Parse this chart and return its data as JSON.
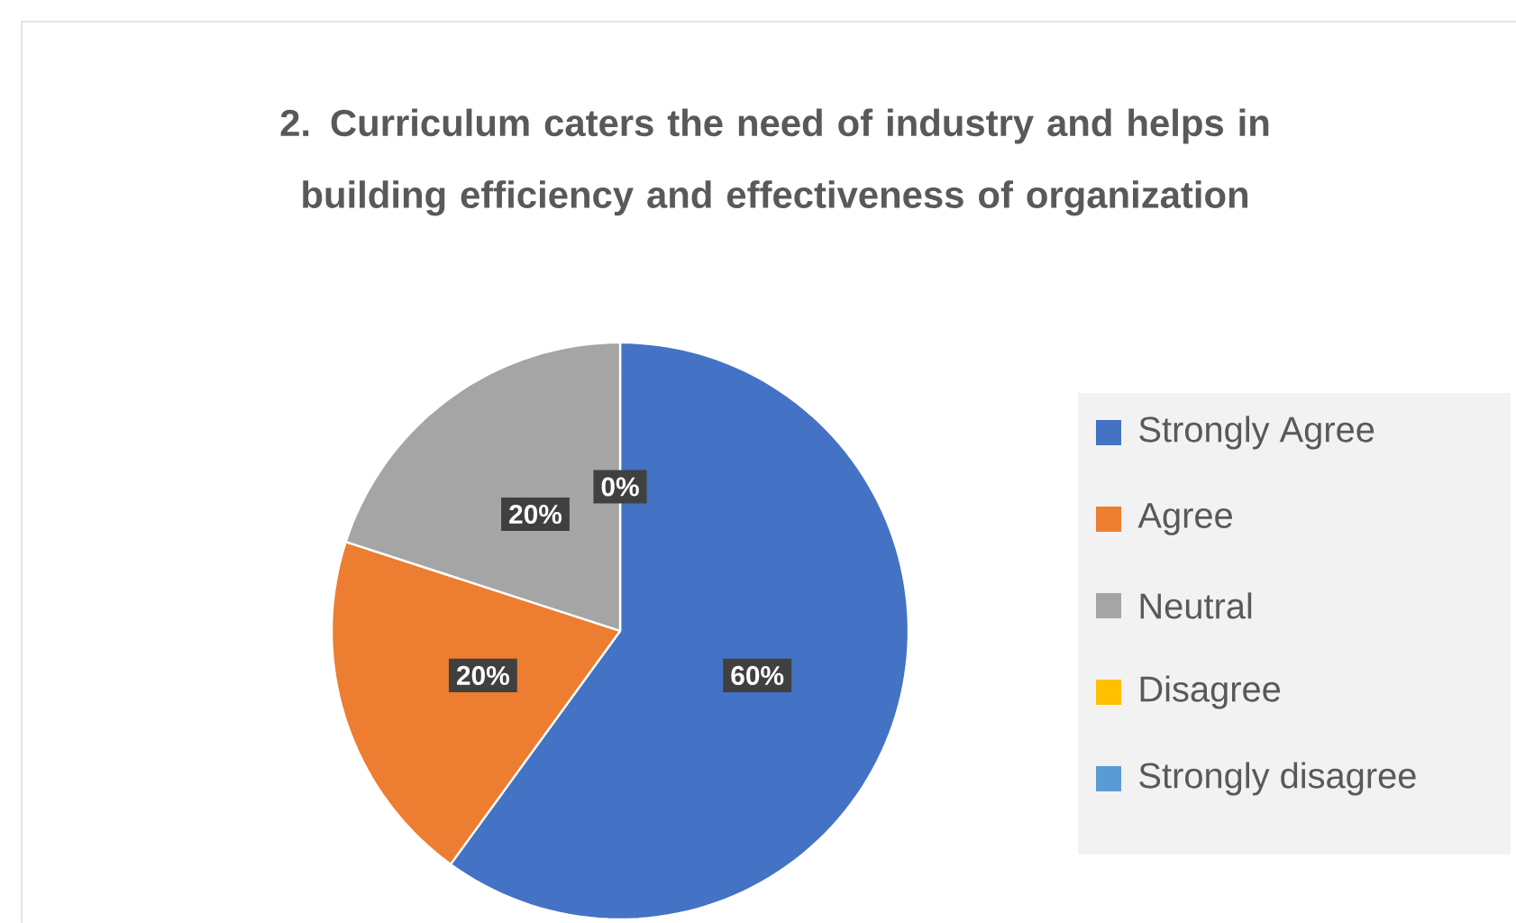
{
  "chart_data": {
    "type": "pie",
    "title": "2. Curriculum caters the need of industry and helps in building efficiency and effectiveness of organization",
    "categories": [
      "Strongly Agree",
      "Agree",
      "Neutral",
      "Disagree",
      "Strongly disagree"
    ],
    "values": [
      60,
      20,
      20,
      0,
      0
    ],
    "colors": [
      "#4472c4",
      "#ed7d31",
      "#a5a5a5",
      "#ffc000",
      "#5b9bd5"
    ],
    "value_labels": [
      "60%",
      "20%",
      "20%",
      "0%",
      null
    ],
    "legend": "right"
  }
}
